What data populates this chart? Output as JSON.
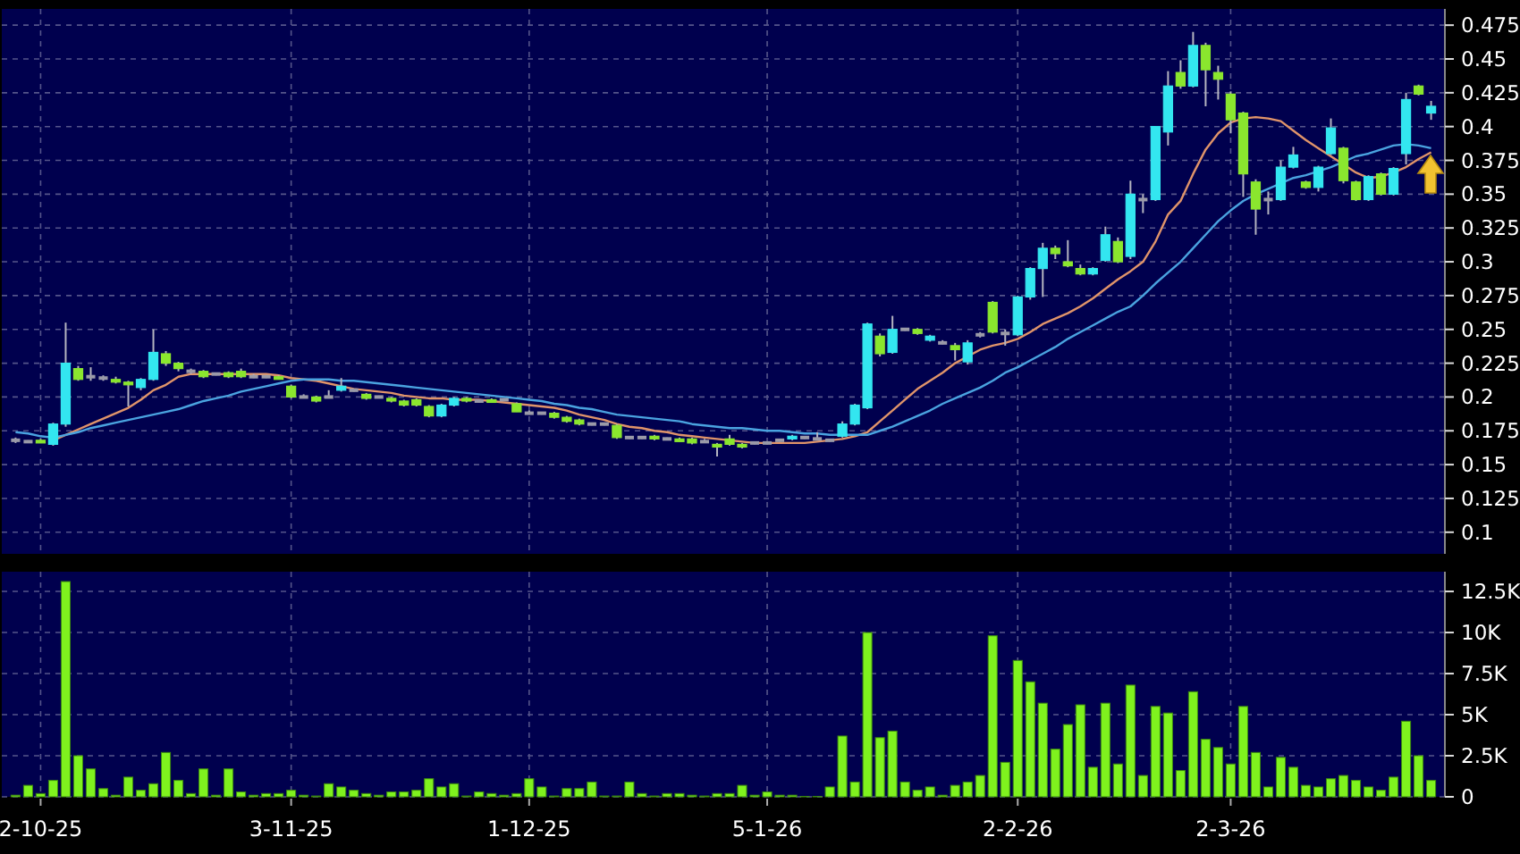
{
  "chart_data": [
    {
      "type": "candlestick",
      "tick_labels": "y",
      "grid": true,
      "ylim": [
        0.084,
        0.487
      ],
      "yticks": [
        0.1,
        0.125,
        0.15,
        0.175,
        0.2,
        0.225,
        0.25,
        0.275,
        0.3,
        0.325,
        0.35,
        0.375,
        0.4,
        0.425,
        0.45,
        0.475
      ],
      "categories": [
        null,
        null,
        null,
        null,
        null,
        null,
        null,
        null,
        null,
        null,
        null,
        null,
        null,
        null,
        null,
        null,
        null,
        null,
        null,
        null,
        null,
        null,
        null,
        null,
        null,
        null,
        null,
        null,
        null,
        null,
        null,
        null,
        null,
        null,
        null,
        null,
        null,
        null,
        null,
        null,
        null,
        null,
        null,
        null,
        null,
        null,
        null,
        null,
        null,
        null,
        null,
        null,
        null,
        null,
        null,
        null,
        null,
        null,
        null,
        null,
        null,
        null,
        null,
        null,
        null,
        null,
        null,
        null,
        null,
        null,
        null,
        null,
        null,
        null,
        null,
        null,
        null,
        null,
        null,
        null,
        null,
        null,
        null,
        null,
        null,
        null,
        null,
        null,
        null,
        null,
        null,
        null,
        null,
        null,
        null,
        null,
        null,
        null,
        null,
        null,
        null,
        null,
        null,
        null,
        null,
        null,
        null,
        null,
        null,
        null,
        null,
        null,
        null,
        null
      ],
      "ohlc": [
        [
          0.168,
          0.17,
          0.166,
          0.168
        ],
        [
          0.167,
          0.168,
          0.166,
          0.167
        ],
        [
          0.168,
          0.169,
          0.166,
          0.167
        ],
        [
          0.165,
          0.181,
          0.164,
          0.18
        ],
        [
          0.18,
          0.255,
          0.178,
          0.225
        ],
        [
          0.221,
          0.223,
          0.212,
          0.213
        ],
        [
          0.215,
          0.222,
          0.212,
          0.215
        ],
        [
          0.214,
          0.216,
          0.212,
          0.214
        ],
        [
          0.213,
          0.215,
          0.21,
          0.211
        ],
        [
          0.211,
          0.212,
          0.193,
          0.209
        ],
        [
          0.207,
          0.214,
          0.205,
          0.213
        ],
        [
          0.213,
          0.25,
          0.212,
          0.233
        ],
        [
          0.232,
          0.234,
          0.223,
          0.225
        ],
        [
          0.225,
          0.226,
          0.219,
          0.221
        ],
        [
          0.219,
          0.221,
          0.217,
          0.219
        ],
        [
          0.219,
          0.22,
          0.214,
          0.215
        ],
        [
          0.217,
          0.218,
          0.216,
          0.217
        ],
        [
          0.218,
          0.219,
          0.214,
          0.215
        ],
        [
          0.219,
          0.221,
          0.214,
          0.215
        ],
        [
          0.215,
          0.217,
          0.214,
          0.215
        ],
        [
          0.215,
          0.216,
          0.214,
          0.215
        ],
        [
          0.215,
          0.216,
          0.213,
          0.214
        ],
        [
          0.208,
          0.209,
          0.199,
          0.2
        ],
        [
          0.2,
          0.202,
          0.199,
          0.2
        ],
        [
          0.2,
          0.201,
          0.196,
          0.197
        ],
        [
          0.2,
          0.205,
          0.199,
          0.2
        ],
        [
          0.205,
          0.214,
          0.204,
          0.208
        ],
        [
          0.205,
          0.206,
          0.204,
          0.205
        ],
        [
          0.202,
          0.203,
          0.198,
          0.199
        ],
        [
          0.2,
          0.201,
          0.199,
          0.2
        ],
        [
          0.199,
          0.2,
          0.196,
          0.197
        ],
        [
          0.197,
          0.198,
          0.193,
          0.194
        ],
        [
          0.198,
          0.199,
          0.193,
          0.194
        ],
        [
          0.193,
          0.194,
          0.185,
          0.186
        ],
        [
          0.186,
          0.195,
          0.185,
          0.194
        ],
        [
          0.194,
          0.2,
          0.193,
          0.199
        ],
        [
          0.199,
          0.2,
          0.196,
          0.197
        ],
        [
          0.197,
          0.198,
          0.196,
          0.197
        ],
        [
          0.198,
          0.199,
          0.196,
          0.197
        ],
        [
          0.198,
          0.199,
          0.197,
          0.198
        ],
        [
          0.195,
          0.196,
          0.189,
          0.189
        ],
        [
          0.188,
          0.19,
          0.187,
          0.188
        ],
        [
          0.188,
          0.189,
          0.187,
          0.188
        ],
        [
          0.188,
          0.189,
          0.184,
          0.185
        ],
        [
          0.185,
          0.186,
          0.181,
          0.182
        ],
        [
          0.183,
          0.184,
          0.179,
          0.18
        ],
        [
          0.18,
          0.181,
          0.179,
          0.18
        ],
        [
          0.18,
          0.181,
          0.179,
          0.18
        ],
        [
          0.179,
          0.18,
          0.169,
          0.17
        ],
        [
          0.17,
          0.171,
          0.169,
          0.17
        ],
        [
          0.17,
          0.171,
          0.169,
          0.17
        ],
        [
          0.171,
          0.172,
          0.168,
          0.169
        ],
        [
          0.169,
          0.17,
          0.168,
          0.169
        ],
        [
          0.169,
          0.17,
          0.167,
          0.168
        ],
        [
          0.169,
          0.17,
          0.165,
          0.166
        ],
        [
          0.167,
          0.169,
          0.166,
          0.167
        ],
        [
          0.165,
          0.166,
          0.156,
          0.163
        ],
        [
          0.169,
          0.172,
          0.164,
          0.165
        ],
        [
          0.165,
          0.166,
          0.162,
          0.163
        ],
        [
          0.166,
          0.167,
          0.165,
          0.166
        ],
        [
          0.166,
          0.167,
          0.165,
          0.166
        ],
        [
          0.168,
          0.169,
          0.167,
          0.168
        ],
        [
          0.169,
          0.172,
          0.168,
          0.171
        ],
        [
          0.17,
          0.171,
          0.169,
          0.17
        ],
        [
          0.169,
          0.174,
          0.168,
          0.169
        ],
        [
          0.168,
          0.169,
          0.167,
          0.168
        ],
        [
          0.171,
          0.182,
          0.17,
          0.18
        ],
        [
          0.18,
          0.195,
          0.179,
          0.194
        ],
        [
          0.192,
          0.255,
          0.191,
          0.254
        ],
        [
          0.245,
          0.247,
          0.23,
          0.232
        ],
        [
          0.233,
          0.26,
          0.232,
          0.25
        ],
        [
          0.25,
          0.251,
          0.249,
          0.25
        ],
        [
          0.25,
          0.251,
          0.246,
          0.247
        ],
        [
          0.242,
          0.246,
          0.241,
          0.245
        ],
        [
          0.24,
          0.242,
          0.239,
          0.24
        ],
        [
          0.238,
          0.24,
          0.227,
          0.235
        ],
        [
          0.226,
          0.242,
          0.224,
          0.24
        ],
        [
          0.246,
          0.248,
          0.244,
          0.246
        ],
        [
          0.27,
          0.271,
          0.247,
          0.248
        ],
        [
          0.247,
          0.25,
          0.238,
          0.247
        ],
        [
          0.246,
          0.275,
          0.245,
          0.274
        ],
        [
          0.274,
          0.296,
          0.272,
          0.295
        ],
        [
          0.295,
          0.314,
          0.274,
          0.31
        ],
        [
          0.31,
          0.312,
          0.302,
          0.306
        ],
        [
          0.3,
          0.316,
          0.296,
          0.297
        ],
        [
          0.295,
          0.298,
          0.29,
          0.291
        ],
        [
          0.291,
          0.296,
          0.29,
          0.295
        ],
        [
          0.301,
          0.326,
          0.3,
          0.32
        ],
        [
          0.315,
          0.318,
          0.299,
          0.3
        ],
        [
          0.304,
          0.36,
          0.302,
          0.35
        ],
        [
          0.346,
          0.35,
          0.336,
          0.346
        ],
        [
          0.346,
          0.4,
          0.345,
          0.4
        ],
        [
          0.396,
          0.441,
          0.386,
          0.43
        ],
        [
          0.44,
          0.449,
          0.428,
          0.43
        ],
        [
          0.43,
          0.47,
          0.429,
          0.46
        ],
        [
          0.46,
          0.462,
          0.415,
          0.442
        ],
        [
          0.44,
          0.445,
          0.42,
          0.435
        ],
        [
          0.424,
          0.426,
          0.395,
          0.405
        ],
        [
          0.41,
          0.411,
          0.348,
          0.365
        ],
        [
          0.359,
          0.361,
          0.32,
          0.339
        ],
        [
          0.346,
          0.352,
          0.335,
          0.346
        ],
        [
          0.346,
          0.375,
          0.345,
          0.37
        ],
        [
          0.37,
          0.385,
          0.369,
          0.379
        ],
        [
          0.359,
          0.36,
          0.354,
          0.355
        ],
        [
          0.355,
          0.371,
          0.352,
          0.37
        ],
        [
          0.38,
          0.406,
          0.379,
          0.399
        ],
        [
          0.384,
          0.385,
          0.358,
          0.36
        ],
        [
          0.359,
          0.36,
          0.345,
          0.346
        ],
        [
          0.346,
          0.364,
          0.345,
          0.363
        ],
        [
          0.365,
          0.366,
          0.349,
          0.35
        ],
        [
          0.35,
          0.37,
          0.349,
          0.369
        ],
        [
          0.38,
          0.425,
          0.372,
          0.42
        ],
        [
          0.43,
          0.431,
          0.423,
          0.424
        ],
        [
          0.41,
          0.419,
          0.405,
          0.415
        ]
      ],
      "colors": [
        "#9a9aa8",
        "#9a9aa8",
        "#8ae62e",
        "#33e6f0",
        "#33e6f0",
        "#8ae62e",
        "#9a9aa8",
        "#9a9aa8",
        "#8ae62e",
        "#8ae62e",
        "#33e6f0",
        "#33e6f0",
        "#8ae62e",
        "#8ae62e",
        "#9a9aa8",
        "#8ae62e",
        "#9a9aa8",
        "#8ae62e",
        "#8ae62e",
        "#9a9aa8",
        "#9a9aa8",
        "#8ae62e",
        "#8ae62e",
        "#9a9aa8",
        "#8ae62e",
        "#9a9aa8",
        "#33e6f0",
        "#9a9aa8",
        "#8ae62e",
        "#9a9aa8",
        "#8ae62e",
        "#8ae62e",
        "#8ae62e",
        "#8ae62e",
        "#33e6f0",
        "#33e6f0",
        "#8ae62e",
        "#9a9aa8",
        "#8ae62e",
        "#9a9aa8",
        "#8ae62e",
        "#9a9aa8",
        "#9a9aa8",
        "#8ae62e",
        "#8ae62e",
        "#8ae62e",
        "#9a9aa8",
        "#9a9aa8",
        "#8ae62e",
        "#9a9aa8",
        "#9a9aa8",
        "#8ae62e",
        "#9a9aa8",
        "#8ae62e",
        "#8ae62e",
        "#9a9aa8",
        "#8ae62e",
        "#8ae62e",
        "#8ae62e",
        "#9a9aa8",
        "#9a9aa8",
        "#9a9aa8",
        "#33e6f0",
        "#9a9aa8",
        "#9a9aa8",
        "#9a9aa8",
        "#33e6f0",
        "#33e6f0",
        "#33e6f0",
        "#8ae62e",
        "#33e6f0",
        "#9a9aa8",
        "#8ae62e",
        "#33e6f0",
        "#9a9aa8",
        "#8ae62e",
        "#33e6f0",
        "#9a9aa8",
        "#8ae62e",
        "#9a9aa8",
        "#33e6f0",
        "#33e6f0",
        "#33e6f0",
        "#8ae62e",
        "#8ae62e",
        "#8ae62e",
        "#33e6f0",
        "#33e6f0",
        "#8ae62e",
        "#33e6f0",
        "#9a9aa8",
        "#33e6f0",
        "#33e6f0",
        "#8ae62e",
        "#33e6f0",
        "#8ae62e",
        "#8ae62e",
        "#8ae62e",
        "#8ae62e",
        "#8ae62e",
        "#9a9aa8",
        "#33e6f0",
        "#33e6f0",
        "#8ae62e",
        "#33e6f0",
        "#33e6f0",
        "#8ae62e",
        "#8ae62e",
        "#33e6f0",
        "#8ae62e",
        "#33e6f0",
        "#33e6f0",
        "#8ae62e",
        "#33e6f0"
      ],
      "series": [
        {
          "type": "line",
          "color": "#e0946a",
          "values": [
            null,
            null,
            null,
            0.168,
            0.172,
            0.176,
            0.18,
            0.184,
            0.188,
            0.192,
            0.198,
            0.205,
            0.209,
            0.215,
            0.217,
            0.217,
            0.217,
            0.217,
            0.217,
            0.217,
            0.217,
            0.216,
            0.214,
            0.213,
            0.212,
            0.21,
            0.208,
            0.206,
            0.205,
            0.204,
            0.203,
            0.201,
            0.2,
            0.199,
            0.199,
            0.198,
            0.198,
            0.198,
            0.197,
            0.196,
            0.195,
            0.194,
            0.193,
            0.192,
            0.19,
            0.187,
            0.185,
            0.183,
            0.18,
            0.178,
            0.177,
            0.175,
            0.174,
            0.172,
            0.171,
            0.17,
            0.169,
            0.168,
            0.167,
            0.166,
            0.166,
            0.166,
            0.166,
            0.166,
            0.167,
            0.168,
            0.169,
            0.171,
            0.174,
            0.182,
            0.19,
            0.198,
            0.206,
            0.212,
            0.218,
            0.225,
            0.23,
            0.235,
            0.238,
            0.24,
            0.243,
            0.248,
            0.254,
            0.258,
            0.262,
            0.267,
            0.273,
            0.28,
            0.287,
            0.293,
            0.3,
            0.315,
            0.335,
            0.345,
            0.365,
            0.383,
            0.395,
            0.403,
            0.406,
            0.407,
            0.406,
            0.404,
            0.397,
            0.39,
            0.384,
            0.378,
            0.372,
            0.366,
            0.362,
            0.363,
            0.366,
            0.37,
            0.376,
            0.381
          ]
        },
        {
          "type": "line",
          "color": "#4aa3e0",
          "values": [
            0.174,
            0.173,
            0.171,
            0.17,
            0.172,
            0.174,
            0.177,
            0.179,
            0.181,
            0.183,
            0.185,
            0.187,
            0.189,
            0.191,
            0.194,
            0.197,
            0.199,
            0.201,
            0.204,
            0.206,
            0.208,
            0.21,
            0.212,
            0.213,
            0.213,
            0.213,
            0.212,
            0.212,
            0.211,
            0.21,
            0.209,
            0.208,
            0.207,
            0.206,
            0.205,
            0.204,
            0.203,
            0.202,
            0.201,
            0.2,
            0.199,
            0.198,
            0.197,
            0.195,
            0.194,
            0.192,
            0.191,
            0.189,
            0.187,
            0.186,
            0.185,
            0.184,
            0.183,
            0.182,
            0.18,
            0.179,
            0.178,
            0.177,
            0.177,
            0.176,
            0.175,
            0.175,
            0.174,
            0.173,
            0.173,
            0.172,
            0.172,
            0.172,
            0.172,
            0.175,
            0.178,
            0.182,
            0.186,
            0.19,
            0.195,
            0.199,
            0.203,
            0.207,
            0.212,
            0.218,
            0.222,
            0.227,
            0.232,
            0.237,
            0.243,
            0.248,
            0.253,
            0.258,
            0.263,
            0.267,
            0.275,
            0.284,
            0.292,
            0.3,
            0.31,
            0.32,
            0.33,
            0.338,
            0.345,
            0.35,
            0.354,
            0.358,
            0.362,
            0.364,
            0.367,
            0.37,
            0.374,
            0.378,
            0.38,
            0.383,
            0.386,
            0.387,
            0.386,
            0.384
          ]
        }
      ]
    },
    {
      "type": "bar",
      "grid": true,
      "color": "#7ff21e",
      "ylim": [
        0,
        13700
      ],
      "yticks": [
        0,
        {
          "value": 2500,
          "label": "2.5K"
        },
        {
          "value": 5000,
          "label": "5K"
        },
        {
          "value": 7500,
          "label": "7.5K"
        },
        {
          "value": 10000,
          "label": "10K"
        },
        {
          "value": 12500,
          "label": "12.5K"
        }
      ],
      "categories": [
        null,
        null,
        "2-10-25",
        null,
        null,
        null,
        null,
        null,
        null,
        null,
        null,
        null,
        null,
        null,
        null,
        null,
        null,
        null,
        null,
        null,
        null,
        null,
        "3-11-25",
        null,
        null,
        null,
        null,
        null,
        null,
        null,
        null,
        null,
        null,
        null,
        null,
        null,
        null,
        null,
        null,
        null,
        null,
        "1-12-25",
        null,
        null,
        null,
        null,
        null,
        null,
        null,
        null,
        null,
        null,
        null,
        null,
        null,
        null,
        null,
        null,
        null,
        null,
        "5-1-26",
        null,
        null,
        null,
        null,
        null,
        null,
        null,
        null,
        null,
        null,
        null,
        null,
        null,
        null,
        null,
        null,
        null,
        null,
        null,
        "2-2-26",
        null,
        null,
        null,
        null,
        null,
        null,
        null,
        null,
        null,
        null,
        null,
        null,
        null,
        null,
        null,
        null,
        "2-3-26",
        null,
        null,
        null,
        null,
        null,
        null,
        null,
        null,
        null,
        null,
        null,
        null,
        null,
        null,
        null,
        null
      ],
      "values": [
        100,
        700,
        200,
        1000,
        13100,
        2500,
        1700,
        500,
        100,
        1200,
        400,
        800,
        2700,
        1000,
        200,
        1700,
        100,
        1700,
        300,
        100,
        200,
        200,
        400,
        100,
        50,
        800,
        600,
        400,
        200,
        100,
        300,
        300,
        400,
        1100,
        600,
        800,
        50,
        300,
        200,
        100,
        200,
        1100,
        600,
        50,
        500,
        500,
        900,
        50,
        50,
        900,
        200,
        50,
        200,
        200,
        100,
        50,
        200,
        200,
        700,
        100,
        300,
        100,
        100,
        20,
        20,
        600,
        3700,
        900,
        10000,
        3600,
        4000,
        900,
        400,
        600,
        100,
        700,
        900,
        1300,
        9800,
        2100,
        8300,
        7000,
        5700,
        2900,
        4400,
        5600,
        1800,
        5700,
        2000,
        6800,
        1300,
        5500,
        5100,
        1600,
        6400,
        3500,
        3000,
        2000,
        5500,
        2700,
        600,
        2400,
        1800,
        700,
        600,
        1100,
        1300,
        1000,
        600,
        400,
        1200,
        4600,
        2500,
        1000
      ]
    }
  ]
}
